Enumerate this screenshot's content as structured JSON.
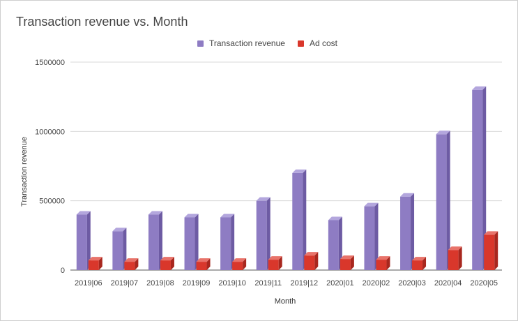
{
  "chart_data": {
    "type": "bar",
    "title": "Transaction revenue vs. Month",
    "xlabel": "Month",
    "ylabel": "Transaction revenue",
    "ylim": [
      0,
      1500000
    ],
    "yticks": [
      "0",
      "500000",
      "1000000",
      "1500000"
    ],
    "yticks_values": [
      0,
      500000,
      1000000,
      1500000
    ],
    "grid": true,
    "legend_position": "top",
    "categories": [
      "2019|06",
      "2019|07",
      "2019|08",
      "2019|09",
      "2019|10",
      "2019|11",
      "2019|12",
      "2020|01",
      "2020|02",
      "2020|03",
      "2020|04",
      "2020|05"
    ],
    "series": [
      {
        "name": "Transaction revenue",
        "color": "#8e7cc3",
        "values": [
          400000,
          280000,
          400000,
          380000,
          380000,
          500000,
          700000,
          360000,
          460000,
          530000,
          980000,
          1300000
        ]
      },
      {
        "name": "Ad cost",
        "color": "#d9372b",
        "values": [
          70000,
          60000,
          70000,
          60000,
          60000,
          75000,
          105000,
          80000,
          75000,
          70000,
          145000,
          255000
        ]
      }
    ]
  }
}
